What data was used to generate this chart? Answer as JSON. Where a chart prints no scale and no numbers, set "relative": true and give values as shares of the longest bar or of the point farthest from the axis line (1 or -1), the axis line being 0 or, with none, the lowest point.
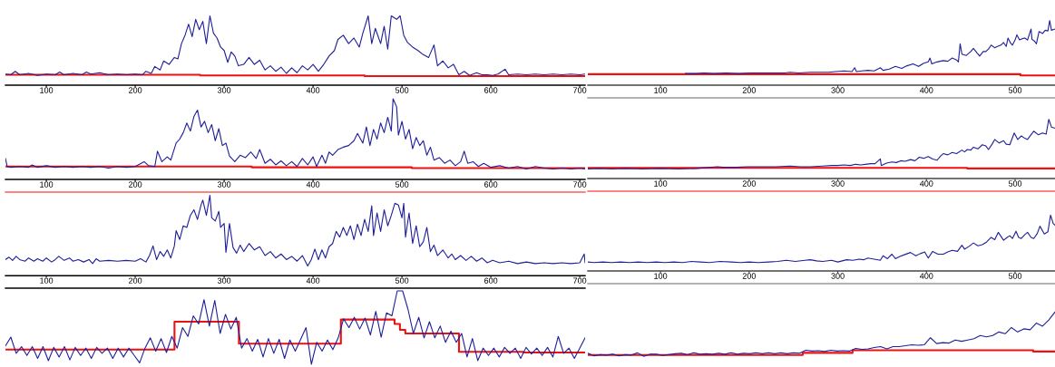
{
  "chart_data": [
    {
      "type": "line",
      "relative": true,
      "xlim": [
        54,
        706
      ],
      "xticks": [
        100,
        200,
        300,
        400,
        500,
        600,
        700
      ],
      "tick_labels": "x",
      "series": [
        {
          "color": "#1f1f99",
          "x": [
            54,
            60,
            65,
            70,
            80,
            90,
            100,
            110,
            115,
            120,
            130,
            140,
            145,
            150,
            160,
            170,
            180,
            190,
            200,
            208,
            212,
            218,
            222,
            228,
            232,
            238,
            244,
            248,
            252,
            256,
            260,
            264,
            268,
            272,
            276,
            280,
            284,
            288,
            292,
            296,
            300,
            304,
            308,
            312,
            316,
            322,
            328,
            334,
            340,
            346,
            352,
            358,
            364,
            370,
            376,
            382,
            388,
            394,
            400,
            406,
            412,
            418,
            424,
            428,
            434,
            440,
            446,
            452,
            456,
            462,
            466,
            470,
            476,
            480,
            484,
            488,
            494,
            498,
            502,
            506,
            512,
            518,
            524,
            530,
            536,
            540,
            546,
            552,
            558,
            564,
            570,
            576,
            584,
            590,
            596,
            602,
            608,
            616,
            620,
            630,
            640,
            650,
            660,
            670,
            680,
            690,
            700,
            706
          ],
          "values": [
            0.16,
            0.15,
            0.2,
            0.15,
            0.17,
            0.14,
            0.16,
            0.15,
            0.19,
            0.15,
            0.17,
            0.15,
            0.19,
            0.16,
            0.18,
            0.15,
            0.16,
            0.15,
            0.16,
            0.15,
            0.2,
            0.17,
            0.27,
            0.22,
            0.35,
            0.3,
            0.4,
            0.38,
            0.6,
            0.72,
            0.88,
            0.7,
            0.95,
            0.8,
            0.92,
            0.6,
            1.0,
            0.75,
            0.68,
            0.55,
            0.5,
            0.33,
            0.48,
            0.42,
            0.28,
            0.3,
            0.4,
            0.3,
            0.36,
            0.22,
            0.28,
            0.2,
            0.26,
            0.17,
            0.25,
            0.18,
            0.28,
            0.22,
            0.3,
            0.2,
            0.3,
            0.42,
            0.5,
            0.66,
            0.72,
            0.6,
            0.68,
            0.55,
            0.75,
            1.0,
            0.6,
            0.82,
            0.6,
            0.85,
            0.52,
            1.0,
            0.95,
            1.0,
            0.72,
            0.62,
            0.55,
            0.5,
            0.44,
            0.4,
            0.58,
            0.28,
            0.35,
            0.25,
            0.3,
            0.15,
            0.2,
            0.14,
            0.18,
            0.15,
            0.15,
            0.14,
            0.16,
            0.23,
            0.15,
            0.16,
            0.15,
            0.16,
            0.15,
            0.16,
            0.15,
            0.16,
            0.15,
            0.16
          ]
        },
        {
          "color": "#ee1111",
          "x": [
            54,
            273,
            273,
            458,
            458,
            706
          ],
          "values": [
            0.15,
            0.15,
            0.14,
            0.14,
            0.13,
            0.13
          ]
        }
      ]
    },
    {
      "type": "line",
      "relative": true,
      "xlim": [
        18,
        545
      ],
      "xticks": [
        100,
        200,
        300,
        400,
        500
      ],
      "tick_labels": "x",
      "series": [
        {
          "color": "#1f1f99",
          "x": [
            128,
            140,
            149,
            160,
            174,
            188,
            201,
            215,
            229,
            240,
            246,
            256,
            269,
            283,
            290,
            297,
            307,
            316,
            319,
            321,
            327,
            334,
            341,
            348,
            351,
            358,
            365,
            372,
            378,
            385,
            391,
            397,
            402,
            404,
            406,
            412,
            419,
            424,
            429,
            434,
            436,
            438,
            440,
            445,
            450,
            453,
            457,
            460,
            464,
            467,
            470,
            473,
            477,
            480,
            484,
            487,
            490,
            492,
            495,
            497,
            500,
            502,
            505,
            508,
            511,
            514,
            518,
            519,
            522,
            524,
            527,
            531,
            534,
            537,
            539,
            541,
            545
          ],
          "values": [
            0.18,
            0.18,
            0.19,
            0.18,
            0.19,
            0.18,
            0.19,
            0.19,
            0.19,
            0.19,
            0.2,
            0.19,
            0.2,
            0.2,
            0.2,
            0.21,
            0.22,
            0.21,
            0.27,
            0.21,
            0.22,
            0.23,
            0.22,
            0.27,
            0.23,
            0.25,
            0.29,
            0.26,
            0.3,
            0.33,
            0.29,
            0.34,
            0.36,
            0.42,
            0.33,
            0.36,
            0.38,
            0.37,
            0.42,
            0.39,
            0.36,
            0.64,
            0.48,
            0.46,
            0.52,
            0.57,
            0.5,
            0.45,
            0.52,
            0.52,
            0.56,
            0.62,
            0.58,
            0.6,
            0.62,
            0.66,
            0.6,
            0.73,
            0.65,
            0.62,
            0.7,
            0.78,
            0.7,
            0.72,
            0.73,
            0.7,
            0.87,
            0.71,
            0.68,
            0.64,
            0.83,
            0.8,
            0.85,
            0.84,
            1.0,
            0.85,
            0.87
          ]
        },
        {
          "color": "#ee1111",
          "x": [
            18,
            506,
            506,
            545
          ],
          "values": [
            0.17,
            0.17,
            0.15,
            0.15
          ]
        }
      ]
    },
    {
      "type": "line",
      "relative": true,
      "xlim": [
        54,
        706
      ],
      "xticks": [
        100,
        200,
        300,
        400,
        500,
        600,
        700
      ],
      "tick_labels": "x",
      "series": [
        {
          "color": "#1f1f99",
          "x": [
            54,
            56,
            60,
            70,
            80,
            84,
            90,
            100,
            110,
            120,
            130,
            140,
            150,
            160,
            170,
            180,
            190,
            200,
            210,
            215,
            222,
            225,
            230,
            236,
            240,
            246,
            250,
            254,
            258,
            262,
            266,
            270,
            274,
            278,
            282,
            286,
            290,
            294,
            298,
            302,
            306,
            312,
            318,
            324,
            330,
            336,
            340,
            346,
            352,
            358,
            364,
            370,
            376,
            382,
            388,
            394,
            400,
            404,
            410,
            414,
            418,
            422,
            428,
            434,
            440,
            446,
            450,
            456,
            460,
            464,
            468,
            472,
            476,
            480,
            484,
            488,
            490,
            494,
            496,
            500,
            504,
            508,
            512,
            516,
            520,
            524,
            528,
            532,
            536,
            542,
            548,
            554,
            560,
            566,
            570,
            574,
            580,
            586,
            592,
            600,
            610,
            620,
            630,
            640,
            650,
            660,
            670,
            680,
            690,
            700,
            706
          ],
          "values": [
            0.26,
            0.16,
            0.15,
            0.16,
            0.15,
            0.18,
            0.15,
            0.17,
            0.15,
            0.16,
            0.15,
            0.16,
            0.15,
            0.16,
            0.14,
            0.16,
            0.15,
            0.16,
            0.22,
            0.17,
            0.16,
            0.35,
            0.22,
            0.28,
            0.24,
            0.45,
            0.5,
            0.58,
            0.7,
            0.6,
            0.78,
            0.86,
            0.65,
            0.72,
            0.58,
            0.68,
            0.48,
            0.63,
            0.42,
            0.45,
            0.29,
            0.22,
            0.3,
            0.27,
            0.34,
            0.26,
            0.37,
            0.2,
            0.25,
            0.18,
            0.23,
            0.17,
            0.22,
            0.16,
            0.26,
            0.18,
            0.28,
            0.16,
            0.3,
            0.2,
            0.34,
            0.3,
            0.37,
            0.4,
            0.42,
            0.48,
            0.57,
            0.45,
            0.65,
            0.42,
            0.62,
            0.5,
            0.7,
            0.58,
            0.77,
            0.6,
            1.0,
            0.9,
            0.55,
            0.72,
            0.5,
            0.62,
            0.38,
            0.52,
            0.42,
            0.48,
            0.3,
            0.4,
            0.24,
            0.27,
            0.2,
            0.24,
            0.17,
            0.22,
            0.35,
            0.2,
            0.22,
            0.16,
            0.2,
            0.15,
            0.17,
            0.14,
            0.16,
            0.13,
            0.16,
            0.14,
            0.13,
            0.14,
            0.13,
            0.14,
            0.13
          ]
        },
        {
          "color": "#ee1111",
          "x": [
            54,
            331,
            331,
            511,
            511,
            706
          ],
          "values": [
            0.16,
            0.16,
            0.15,
            0.15,
            0.14,
            0.14
          ]
        }
      ]
    },
    {
      "type": "line",
      "relative": true,
      "xlim": [
        18,
        545
      ],
      "xticks": [
        100,
        200,
        300,
        400,
        500
      ],
      "tick_labels": "x",
      "series": [
        {
          "color": "#1f1f99",
          "x": [
            18,
            30,
            45,
            60,
            80,
            100,
            120,
            140,
            164,
            171,
            185,
            198,
            215,
            230,
            246,
            258,
            269,
            283,
            293,
            300,
            307,
            314,
            320,
            326,
            331,
            337,
            342,
            348,
            349,
            355,
            361,
            366,
            371,
            376,
            382,
            387,
            392,
            397,
            402,
            407,
            412,
            416,
            419,
            424,
            429,
            434,
            440,
            443,
            446,
            450,
            453,
            458,
            463,
            467,
            470,
            474,
            477,
            482,
            487,
            490,
            494,
            499,
            503,
            507,
            511,
            514,
            518,
            521,
            526,
            531,
            535,
            538,
            541,
            545
          ],
          "values": [
            0.16,
            0.17,
            0.16,
            0.17,
            0.16,
            0.17,
            0.16,
            0.17,
            0.2,
            0.19,
            0.19,
            0.2,
            0.2,
            0.2,
            0.21,
            0.2,
            0.2,
            0.21,
            0.22,
            0.22,
            0.23,
            0.22,
            0.24,
            0.23,
            0.24,
            0.25,
            0.25,
            0.33,
            0.22,
            0.26,
            0.28,
            0.27,
            0.3,
            0.29,
            0.32,
            0.3,
            0.36,
            0.34,
            0.37,
            0.33,
            0.31,
            0.38,
            0.42,
            0.4,
            0.44,
            0.42,
            0.48,
            0.45,
            0.49,
            0.48,
            0.53,
            0.5,
            0.57,
            0.55,
            0.49,
            0.58,
            0.66,
            0.6,
            0.64,
            0.58,
            0.57,
            0.77,
            0.66,
            0.72,
            0.68,
            0.66,
            0.74,
            0.8,
            0.74,
            0.77,
            0.75,
            1.0,
            0.87,
            0.85
          ]
        },
        {
          "color": "#ee1111",
          "x": [
            18,
            446,
            446,
            545
          ],
          "values": [
            0.18,
            0.18,
            0.17,
            0.17
          ]
        }
      ]
    },
    {
      "type": "line",
      "relative": true,
      "xlim": [
        54,
        706
      ],
      "xticks": [
        100,
        200,
        300,
        400,
        500,
        600,
        700
      ],
      "tick_labels": "x",
      "series": [
        {
          "color": "#1f1f99",
          "x": [
            54,
            58,
            62,
            66,
            70,
            76,
            80,
            86,
            90,
            96,
            100,
            106,
            110,
            114,
            120,
            126,
            130,
            136,
            142,
            148,
            152,
            156,
            160,
            170,
            180,
            190,
            200,
            206,
            212,
            216,
            220,
            224,
            228,
            232,
            236,
            240,
            244,
            246,
            250,
            254,
            258,
            262,
            266,
            270,
            274,
            276,
            280,
            284,
            286,
            290,
            294,
            296,
            300,
            302,
            306,
            310,
            314,
            318,
            322,
            328,
            334,
            340,
            346,
            352,
            358,
            364,
            370,
            376,
            382,
            388,
            394,
            398,
            402,
            406,
            410,
            414,
            418,
            422,
            426,
            430,
            434,
            438,
            442,
            446,
            450,
            454,
            458,
            462,
            466,
            468,
            472,
            476,
            480,
            484,
            488,
            492,
            496,
            500,
            502,
            504,
            508,
            512,
            516,
            520,
            524,
            528,
            532,
            536,
            540,
            546,
            552,
            556,
            560,
            566,
            572,
            578,
            584,
            590,
            596,
            602,
            610,
            620,
            630,
            640,
            650,
            660,
            670,
            680,
            690,
            700,
            705,
            706
          ],
          "values": [
            0.2,
            0.23,
            0.19,
            0.24,
            0.2,
            0.18,
            0.22,
            0.18,
            0.21,
            0.18,
            0.22,
            0.17,
            0.2,
            0.24,
            0.19,
            0.22,
            0.18,
            0.2,
            0.17,
            0.2,
            0.15,
            0.21,
            0.18,
            0.19,
            0.18,
            0.19,
            0.18,
            0.21,
            0.17,
            0.25,
            0.37,
            0.2,
            0.3,
            0.24,
            0.32,
            0.22,
            0.37,
            0.56,
            0.45,
            0.62,
            0.6,
            0.75,
            0.82,
            0.7,
            0.88,
            0.94,
            0.75,
            1.0,
            0.72,
            0.68,
            0.8,
            0.6,
            0.65,
            0.29,
            0.65,
            0.35,
            0.28,
            0.38,
            0.3,
            0.4,
            0.32,
            0.36,
            0.25,
            0.3,
            0.22,
            0.27,
            0.2,
            0.24,
            0.18,
            0.25,
            0.12,
            0.2,
            0.33,
            0.2,
            0.32,
            0.22,
            0.36,
            0.4,
            0.55,
            0.48,
            0.6,
            0.5,
            0.62,
            0.45,
            0.64,
            0.5,
            0.7,
            0.55,
            0.87,
            0.5,
            0.78,
            0.55,
            0.82,
            0.62,
            0.75,
            0.9,
            0.88,
            0.72,
            0.9,
            0.48,
            0.78,
            0.4,
            0.62,
            0.36,
            0.42,
            0.6,
            0.3,
            0.38,
            0.25,
            0.32,
            0.22,
            0.27,
            0.2,
            0.25,
            0.19,
            0.24,
            0.18,
            0.22,
            0.16,
            0.19,
            0.16,
            0.18,
            0.15,
            0.17,
            0.15,
            0.16,
            0.15,
            0.16,
            0.15,
            0.16,
            0.27,
            0.16
          ]
        }
      ]
    },
    {
      "type": "line",
      "relative": true,
      "xlim": [
        18,
        545
      ],
      "xticks": [
        100,
        200,
        300,
        400,
        500
      ],
      "tick_labels": "x",
      "series": [
        {
          "color": "#1f1f99",
          "x": [
            18,
            25,
            35,
            45,
            55,
            65,
            75,
            85,
            95,
            105,
            115,
            125,
            135,
            145,
            155,
            167,
            180,
            190,
            200,
            210,
            222,
            232,
            242,
            252,
            263,
            269,
            276,
            283,
            293,
            300,
            310,
            317,
            324,
            329,
            334,
            341,
            348,
            351,
            356,
            361,
            365,
            370,
            375,
            382,
            388,
            393,
            398,
            402,
            407,
            413,
            419,
            424,
            429,
            435,
            440,
            443,
            448,
            453,
            458,
            463,
            468,
            473,
            477,
            481,
            487,
            491,
            494,
            497,
            501,
            504,
            507,
            511,
            514,
            518,
            521,
            525,
            528,
            533,
            537,
            540,
            543,
            545
          ],
          "values": [
            0.16,
            0.15,
            0.16,
            0.15,
            0.16,
            0.15,
            0.16,
            0.15,
            0.16,
            0.15,
            0.16,
            0.15,
            0.17,
            0.16,
            0.15,
            0.17,
            0.16,
            0.15,
            0.16,
            0.15,
            0.16,
            0.17,
            0.19,
            0.17,
            0.19,
            0.2,
            0.18,
            0.17,
            0.19,
            0.16,
            0.2,
            0.19,
            0.21,
            0.2,
            0.23,
            0.21,
            0.19,
            0.27,
            0.22,
            0.3,
            0.22,
            0.26,
            0.29,
            0.33,
            0.27,
            0.31,
            0.34,
            0.23,
            0.35,
            0.3,
            0.3,
            0.34,
            0.37,
            0.35,
            0.46,
            0.39,
            0.44,
            0.5,
            0.45,
            0.47,
            0.52,
            0.6,
            0.56,
            0.69,
            0.55,
            0.6,
            0.63,
            0.58,
            0.71,
            0.6,
            0.58,
            0.65,
            0.69,
            0.6,
            0.58,
            0.67,
            0.8,
            0.66,
            0.7,
            1.0,
            0.85,
            0.82
          ]
        }
      ]
    },
    {
      "type": "line",
      "relative": true,
      "tick_labels": false,
      "categories": [
        null,
        null,
        null,
        null,
        null,
        null,
        null,
        null,
        null,
        null,
        null,
        null,
        null,
        null,
        null,
        null,
        null,
        null,
        null,
        null,
        null,
        null,
        null,
        null,
        null,
        null,
        null,
        null,
        null,
        null,
        null,
        null,
        null,
        null,
        null,
        null,
        null,
        null,
        null,
        null,
        null,
        null,
        null,
        null,
        null,
        null,
        null,
        null,
        null,
        null,
        null,
        null,
        null,
        null,
        null,
        null,
        null,
        null,
        null,
        null,
        null,
        null,
        null,
        null,
        null,
        null,
        null,
        null,
        null,
        null,
        null,
        null,
        null,
        null,
        null,
        null,
        null,
        null,
        null,
        null,
        null,
        null,
        null,
        null,
        null,
        null,
        null,
        null,
        null,
        null,
        null,
        null,
        null,
        null,
        null,
        null,
        null,
        null,
        null,
        null,
        null,
        null,
        null,
        null,
        null,
        null,
        null,
        null,
        null
      ],
      "series": [
        {
          "color": "#1f1f99",
          "values": [
            0.25,
            0.37,
            0.15,
            0.24,
            0.12,
            0.24,
            0.08,
            0.24,
            0.05,
            0.23,
            0.1,
            0.24,
            0.06,
            0.23,
            0.12,
            0.22,
            0.08,
            0.23,
            0.15,
            0.22,
            0.08,
            0.22,
            0.1,
            0.22,
            0.12,
            0.02,
            0.22,
            0.36,
            0.18,
            0.35,
            0.16,
            0.38,
            0.22,
            0.5,
            0.38,
            0.66,
            0.55,
            0.88,
            0.52,
            0.87,
            0.42,
            0.68,
            0.48,
            0.64,
            0.22,
            0.35,
            0.18,
            0.34,
            0.1,
            0.35,
            0.15,
            0.34,
            0.08,
            0.33,
            0.18,
            0.34,
            0.5,
            0.0,
            0.3,
            0.18,
            0.33,
            0.2,
            0.36,
            0.62,
            0.5,
            0.64,
            0.48,
            0.63,
            0.4,
            0.72,
            0.37,
            0.7,
            0.66,
            1.0,
            1.0,
            0.75,
            0.42,
            0.64,
            0.36,
            0.58,
            0.36,
            0.52,
            0.3,
            0.45,
            0.3,
            0.42,
            0.1,
            0.35,
            0.05,
            0.22,
            0.12,
            0.22,
            0.1,
            0.23,
            0.15,
            0.22,
            0.08,
            0.23,
            0.14,
            0.22,
            0.12,
            0.23,
            0.1,
            0.38,
            0.15,
            0.22,
            0.08,
            0.22,
            0.36
          ]
        },
        {
          "type": "step",
          "color": "#ee1111",
          "values": [
            0.2,
            0.2,
            0.2,
            0.2,
            0.2,
            0.2,
            0.2,
            0.2,
            0.2,
            0.2,
            0.2,
            0.2,
            0.2,
            0.2,
            0.2,
            0.2,
            0.2,
            0.2,
            0.2,
            0.2,
            0.2,
            0.2,
            0.2,
            0.2,
            0.2,
            0.2,
            0.2,
            0.2,
            0.2,
            0.2,
            0.2,
            0.2,
            0.58,
            0.58,
            0.58,
            0.58,
            0.58,
            0.58,
            0.58,
            0.58,
            0.58,
            0.58,
            0.58,
            0.58,
            0.28,
            0.28,
            0.28,
            0.28,
            0.28,
            0.28,
            0.28,
            0.28,
            0.28,
            0.28,
            0.28,
            0.28,
            0.28,
            0.28,
            0.28,
            0.28,
            0.28,
            0.28,
            0.28,
            0.61,
            0.61,
            0.61,
            0.61,
            0.61,
            0.61,
            0.61,
            0.61,
            0.61,
            0.61,
            0.55,
            0.47,
            0.42,
            0.42,
            0.42,
            0.42,
            0.42,
            0.42,
            0.42,
            0.42,
            0.42,
            0.42,
            0.17,
            0.17,
            0.17,
            0.17,
            0.17,
            0.17,
            0.17,
            0.17,
            0.17,
            0.17,
            0.17,
            0.17,
            0.16,
            0.16,
            0.16,
            0.16,
            0.16,
            0.16,
            0.16,
            0.16,
            0.16,
            0.16,
            0.16,
            0.16
          ]
        }
      ]
    },
    {
      "type": "line",
      "relative": true,
      "tick_labels": false,
      "categories": [
        null,
        null,
        null,
        null,
        null,
        null,
        null,
        null,
        null,
        null,
        null,
        null,
        null,
        null,
        null,
        null,
        null,
        null,
        null,
        null,
        null,
        null,
        null,
        null,
        null,
        null,
        null,
        null,
        null,
        null,
        null,
        null,
        null,
        null,
        null,
        null,
        null,
        null,
        null,
        null,
        null,
        null,
        null,
        null,
        null,
        null,
        null,
        null,
        null,
        null,
        null,
        null,
        null,
        null,
        null,
        null,
        null,
        null,
        null,
        null,
        null,
        null,
        null,
        null,
        null,
        null,
        null,
        null,
        null,
        null,
        null,
        null,
        null,
        null,
        null,
        null
      ],
      "series": [
        {
          "color": "#1f1f99",
          "values": [
            0.07,
            0.01,
            0.04,
            0.03,
            0.05,
            0.01,
            0.04,
            0.03,
            0.08,
            0.0,
            0.05,
            0.05,
            0.02,
            0.04,
            0.06,
            0.07,
            0.04,
            0.08,
            0.05,
            0.06,
            0.05,
            0.07,
            0.05,
            0.08,
            0.05,
            0.07,
            0.06,
            0.08,
            0.06,
            0.08,
            0.06,
            0.08,
            0.06,
            0.08,
            0.07,
            0.14,
            0.12,
            0.13,
            0.11,
            0.14,
            0.12,
            0.13,
            0.12,
            0.18,
            0.16,
            0.17,
            0.2,
            0.22,
            0.17,
            0.22,
            0.22,
            0.24,
            0.26,
            0.25,
            0.26,
            0.42,
            0.29,
            0.31,
            0.3,
            0.37,
            0.34,
            0.37,
            0.4,
            0.47,
            0.44,
            0.47,
            0.55,
            0.51,
            0.65,
            0.55,
            0.62,
            0.6,
            0.75,
            0.68,
            0.82,
            1.0
          ]
        },
        {
          "type": "step",
          "color": "#ee1111",
          "values": [
            0.03,
            0.03,
            0.03,
            0.03,
            0.03,
            0.03,
            0.03,
            0.03,
            0.03,
            0.03,
            0.03,
            0.03,
            0.03,
            0.03,
            0.03,
            0.03,
            0.03,
            0.03,
            0.03,
            0.03,
            0.03,
            0.03,
            0.03,
            0.03,
            0.03,
            0.03,
            0.03,
            0.03,
            0.03,
            0.03,
            0.03,
            0.03,
            0.03,
            0.03,
            0.03,
            0.08,
            0.08,
            0.08,
            0.08,
            0.08,
            0.08,
            0.08,
            0.08,
            0.14,
            0.14,
            0.14,
            0.14,
            0.14,
            0.14,
            0.14,
            0.14,
            0.14,
            0.14,
            0.14,
            0.14,
            0.14,
            0.14,
            0.14,
            0.14,
            0.14,
            0.14,
            0.14,
            0.14,
            0.14,
            0.14,
            0.14,
            0.14,
            0.14,
            0.14,
            0.14,
            0.14,
            0.14,
            0.11,
            0.11,
            0.11,
            0.11
          ]
        }
      ]
    }
  ]
}
